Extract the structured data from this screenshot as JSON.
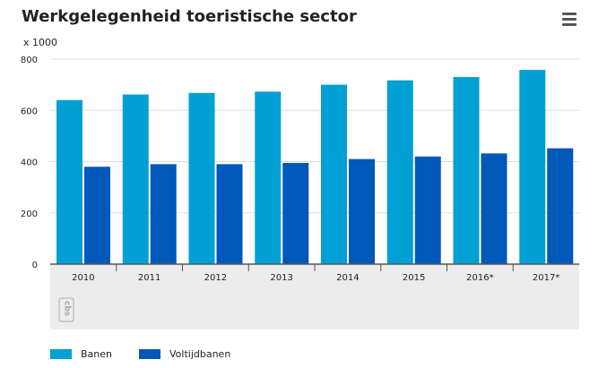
{
  "header": {
    "title": "Werkgelegenheid toeristische sector",
    "menu_icon": "hamburger-menu-icon"
  },
  "logo": {
    "text": "cbs",
    "icon": "cbs-logo-icon"
  },
  "colors": {
    "banen": "#009fd4",
    "voltijdbanen": "#0058b8",
    "axis": "#555555",
    "grid": "#dddddd",
    "footer_panel": "#ececec"
  },
  "chart_data": {
    "type": "bar",
    "title": "Werkgelegenheid toeristische sector",
    "unit_label": "x 1000",
    "categories": [
      "2010",
      "2011",
      "2012",
      "2013",
      "2014",
      "2015",
      "2016*",
      "2017*"
    ],
    "series": [
      {
        "name": "Banen",
        "color": "#009fd4",
        "values": [
          640,
          662,
          668,
          673,
          700,
          717,
          730,
          758
        ]
      },
      {
        "name": "Voltijdbanen",
        "color": "#0058b8",
        "values": [
          380,
          390,
          390,
          395,
          410,
          420,
          432,
          452
        ]
      }
    ],
    "ylim": [
      0,
      800
    ],
    "yticks": [
      0,
      200,
      400,
      600,
      800
    ],
    "grid": true,
    "legend_position": "bottom-left"
  }
}
